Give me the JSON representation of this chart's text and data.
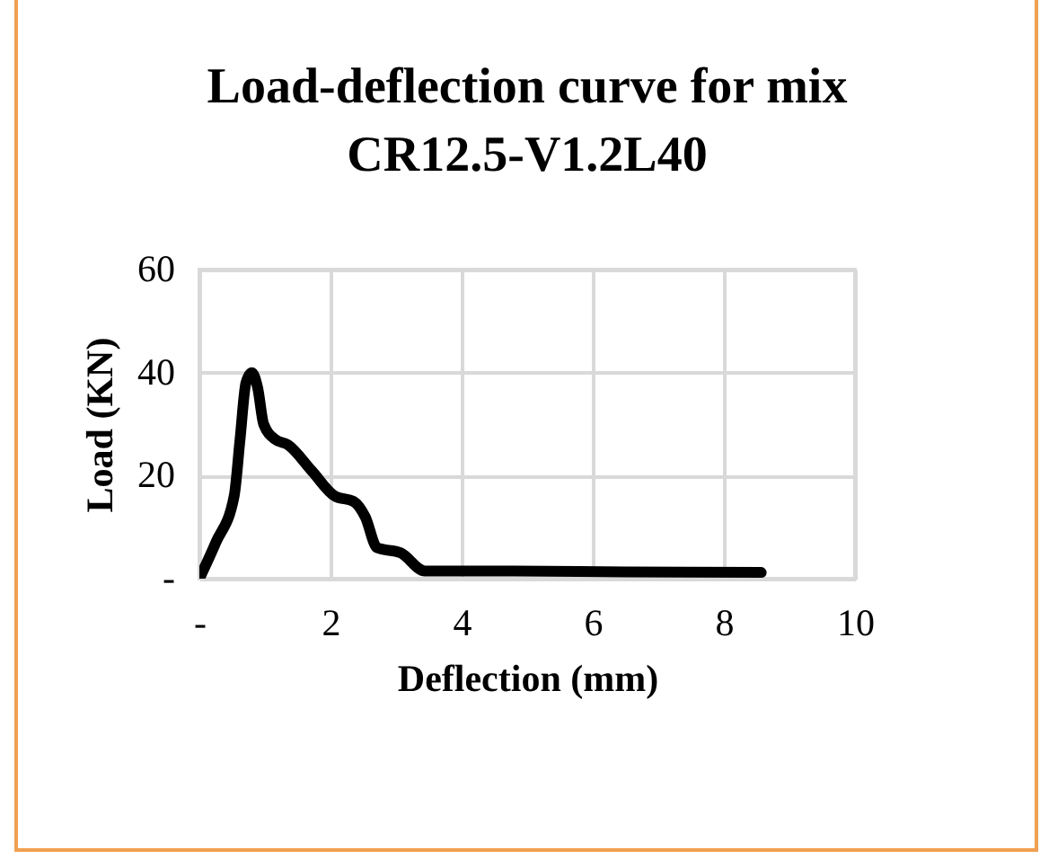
{
  "chart_data": {
    "type": "line",
    "title": "Load-deflection  curve for mix CR12.5-V1.2L40",
    "xlabel": "Deflection (mm)",
    "ylabel": "Load (KN)",
    "series": [
      {
        "color": "#000000",
        "x": [
          0,
          0.25,
          0.53,
          0.62,
          0.71,
          0.8,
          0.89,
          0.98,
          1.16,
          1.35,
          1.71,
          2.07,
          2.35,
          2.53,
          2.71,
          3.07,
          3.44,
          4.8,
          6.5,
          8.57
        ],
        "values": [
          0,
          7,
          16,
          27,
          38,
          40,
          37,
          30,
          27,
          26,
          21,
          16,
          15,
          12,
          6,
          5,
          1.5,
          1.5,
          1.3,
          1.2
        ]
      }
    ],
    "xlim": [
      0,
      10
    ],
    "xticks": [
      {
        "value": 0,
        "label": "-"
      },
      2,
      4,
      6,
      8,
      10
    ],
    "ylim": [
      0,
      60
    ],
    "yticks": [
      {
        "value": 0,
        "label": "-"
      },
      20,
      40,
      60
    ],
    "grid": true
  }
}
